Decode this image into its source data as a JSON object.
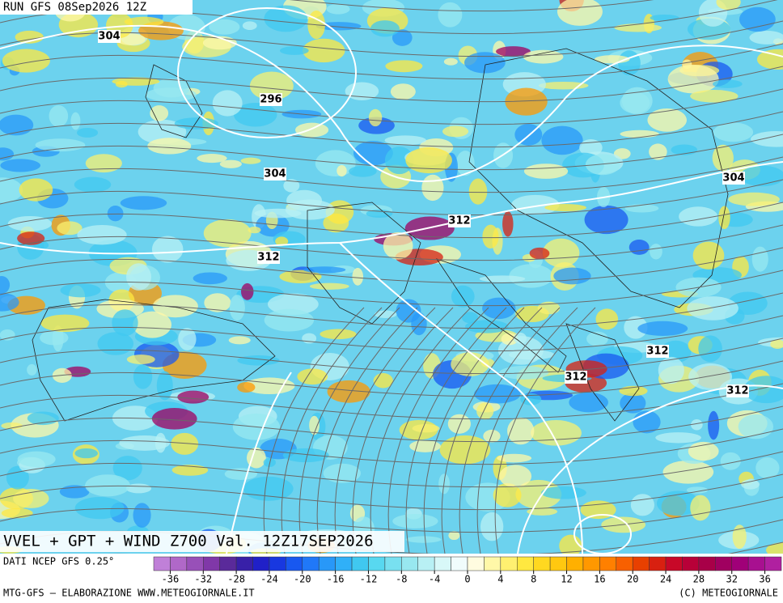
{
  "header": {
    "run": "RUN GFS 08Sep2026 12Z"
  },
  "map": {
    "contour_labels": [
      "304",
      "296",
      "304",
      "312",
      "312",
      "304",
      "312",
      "312",
      "312"
    ],
    "title": "VVEL + GPT + WIND Z700 Val. 12Z17SEP2026"
  },
  "legend": {
    "source": "DATI NCEP GFS 0.25°",
    "ticks": [
      -36,
      -32,
      -28,
      -24,
      -20,
      -16,
      -12,
      -8,
      -4,
      0,
      4,
      8,
      12,
      16,
      20,
      24,
      28,
      32,
      36
    ],
    "colors": [
      "#c080d8",
      "#b068c8",
      "#9850b8",
      "#8038a8",
      "#5a2a9a",
      "#3820a8",
      "#2020c8",
      "#1838e0",
      "#1858f0",
      "#2078f8",
      "#2898f8",
      "#30b0f8",
      "#40c8f0",
      "#58d8f0",
      "#78e0f0",
      "#98e8f0",
      "#b8f0f4",
      "#d8f8f8",
      "#f0fcfc",
      "#fffce0",
      "#fff8a8",
      "#fff070",
      "#ffe840",
      "#ffd820",
      "#ffc810",
      "#ffb000",
      "#ff9800",
      "#ff8000",
      "#f86000",
      "#e84000",
      "#d82010",
      "#c80828",
      "#b80038",
      "#a80048",
      "#a00060",
      "#a00078",
      "#a81090",
      "#b020a0"
    ]
  },
  "footer": {
    "left": "MTG-GFS — ELABORAZIONE WWW.METEOGIORNALE.IT",
    "right": "(C) METEOGIORNALE"
  }
}
